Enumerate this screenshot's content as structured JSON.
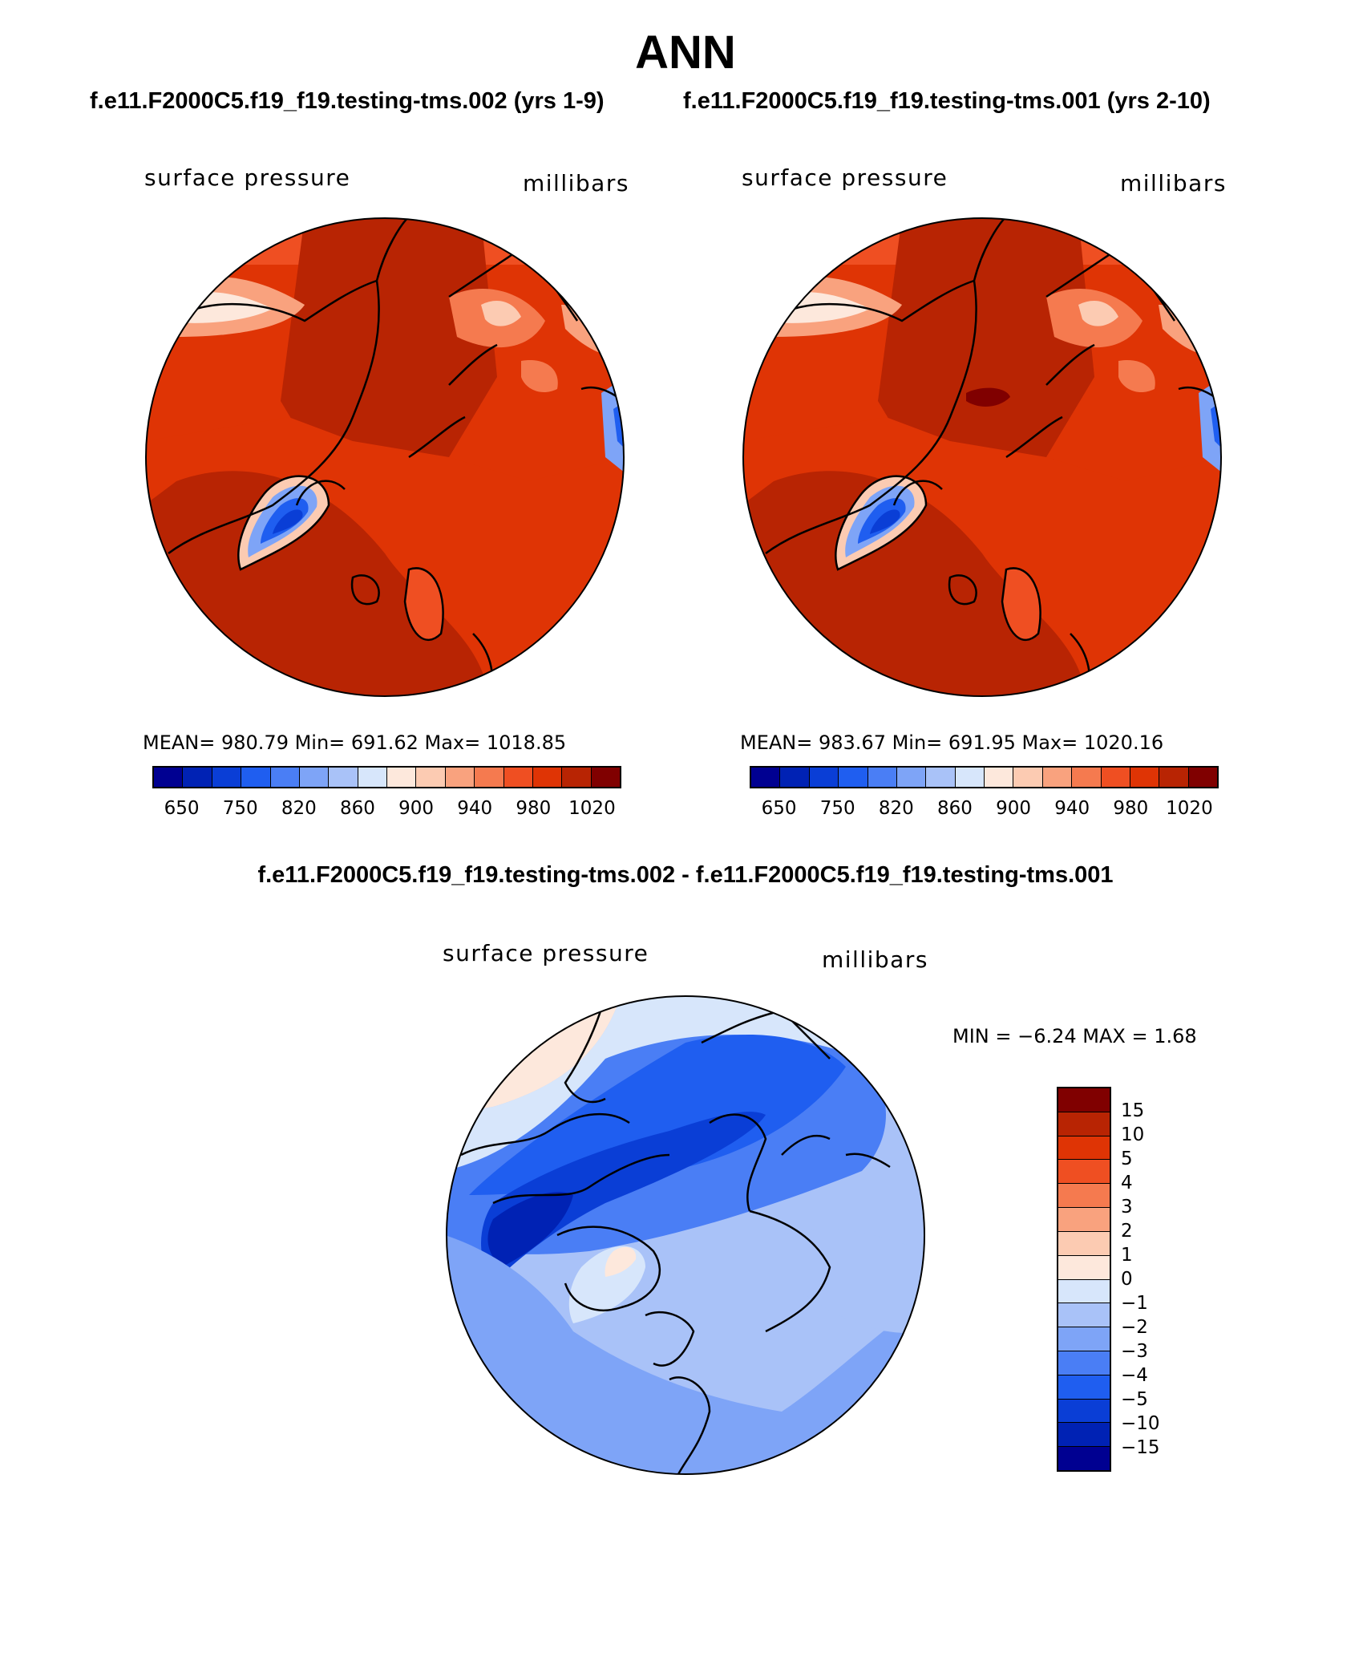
{
  "title": "ANN",
  "panels": {
    "left": {
      "case": "f.e11.F2000C5.f19_f19.testing-tms.002 (yrs 1-9)",
      "variable": "surface pressure",
      "units": "millibars",
      "stats": "MEAN= 980.79   Min= 691.62   Max= 1018.85"
    },
    "right": {
      "case": "f.e11.F2000C5.f19_f19.testing-tms.001 (yrs 2-10)",
      "variable": "surface pressure",
      "units": "millibars",
      "stats": "MEAN= 983.67   Min= 691.95   Max= 1020.16"
    },
    "diff": {
      "title": "f.e11.F2000C5.f19_f19.testing-tms.002 - f.e11.F2000C5.f19_f19.testing-tms.001",
      "variable": "surface pressure",
      "units": "millibars",
      "stats": "MIN =  −6.24  MAX =    1.68"
    }
  },
  "colorbars": {
    "main": {
      "colors": [
        "#000091",
        "#0022b4",
        "#0a3ed6",
        "#1f5ef0",
        "#4a7ef5",
        "#7ea4f7",
        "#a9c2f8",
        "#d7e6fb",
        "#fde8dc",
        "#fccbb2",
        "#f9a27e",
        "#f57a4f",
        "#ef4f22",
        "#df3405",
        "#b82403",
        "#800000"
      ],
      "labels": [
        "650",
        "750",
        "820",
        "860",
        "900",
        "940",
        "980",
        "1020"
      ]
    },
    "diff": {
      "colors": [
        "#800000",
        "#b82403",
        "#df3405",
        "#ef4f22",
        "#f57a4f",
        "#f9a27e",
        "#fccbb2",
        "#fde8dc",
        "#d7e6fb",
        "#a9c2f8",
        "#7ea4f7",
        "#4a7ef5",
        "#1f5ef0",
        "#0a3ed6",
        "#0022b4",
        "#000091"
      ],
      "labels": [
        "15",
        "10",
        "5",
        "4",
        "3",
        "2",
        "1",
        "0",
        "−1",
        "−2",
        "−3",
        "−4",
        "−5",
        "−10",
        "−15"
      ]
    }
  }
}
